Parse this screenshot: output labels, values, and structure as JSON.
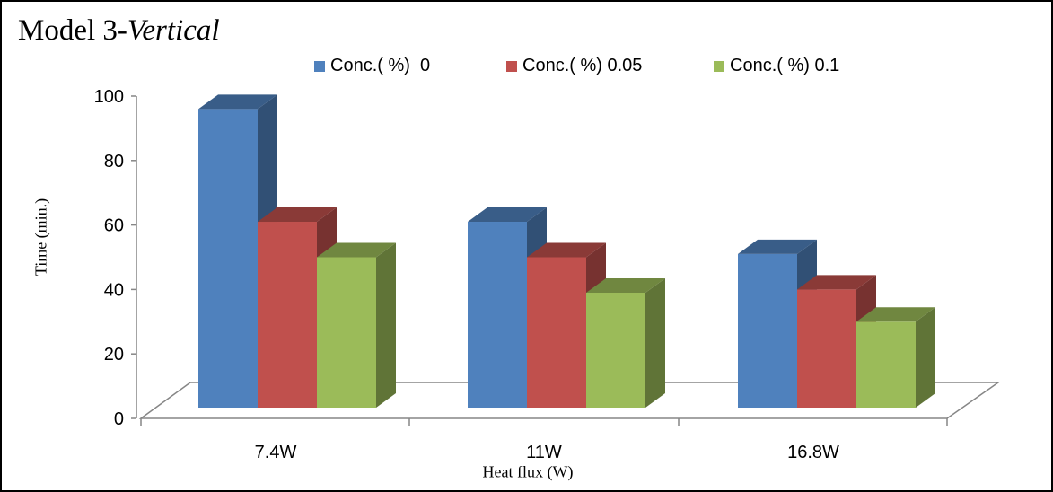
{
  "chart_data": {
    "type": "bar",
    "title_main": "Model 3-",
    "title_italic": "Vertical",
    "xlabel": "Heat flux (W)",
    "ylabel": "Time (min.)",
    "categories": [
      "7.4W",
      "11W",
      "16.8W"
    ],
    "ylim": [
      0,
      100
    ],
    "yticks": [
      0,
      20,
      40,
      60,
      80,
      100
    ],
    "grid": false,
    "legend_position": "top",
    "series": [
      {
        "name": "Conc.( %)  0",
        "values": [
          96,
          61,
          51
        ],
        "color": "#4f81bd"
      },
      {
        "name": "Conc.( %) 0.05",
        "values": [
          61,
          50,
          40
        ],
        "color": "#c0504d"
      },
      {
        "name": "Conc.( %) 0.1",
        "values": [
          50,
          39,
          30
        ],
        "color": "#9bbb59"
      }
    ]
  }
}
